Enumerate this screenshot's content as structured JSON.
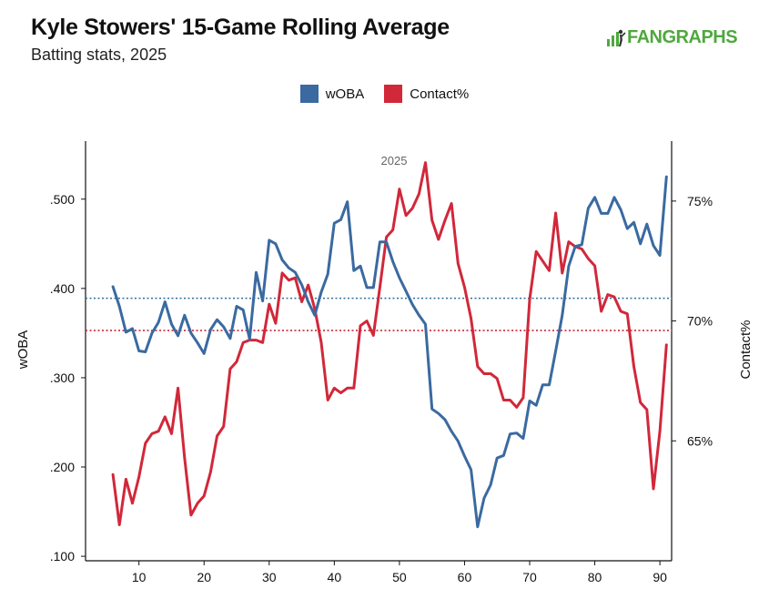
{
  "header": {
    "title": "Kyle Stowers' 15-Game Rolling Average",
    "subtitle": "Batting stats, 2025",
    "logo_text": "FANGRAPHS"
  },
  "colors": {
    "woba": "#3a6aa0",
    "contact": "#d1283a",
    "logo": "#4fa83d"
  },
  "chart_data": {
    "type": "line",
    "panel_label": "2025",
    "xlabel": "",
    "ylabel_left": "wOBA",
    "ylabel_right": "Contact%",
    "x_ticks": [
      10,
      20,
      30,
      40,
      50,
      60,
      70,
      80,
      90
    ],
    "left_ticks": [
      ".100",
      ".200",
      ".300",
      ".400",
      ".500"
    ],
    "left_tick_values": [
      0.1,
      0.2,
      0.3,
      0.4,
      0.5
    ],
    "right_ticks": [
      "65%",
      "70%",
      "75%"
    ],
    "right_tick_values": [
      65,
      70,
      75
    ],
    "xlim": [
      1.8,
      91.8
    ],
    "ylim_left": [
      0.095,
      0.565
    ],
    "ylim_right": [
      60.0,
      77.5
    ],
    "legend_position": "top-center",
    "series": [
      {
        "name": "wOBA",
        "axis": "left",
        "color": "#3a6aa0",
        "x": [
          6,
          7,
          8,
          9,
          10,
          11,
          12,
          13,
          14,
          15,
          16,
          17,
          18,
          19,
          20,
          21,
          22,
          23,
          24,
          25,
          26,
          27,
          28,
          29,
          30,
          31,
          32,
          33,
          34,
          35,
          36,
          37,
          38,
          39,
          40,
          41,
          42,
          43,
          44,
          45,
          46,
          47,
          48,
          49,
          50,
          51,
          52,
          53,
          54,
          55,
          56,
          57,
          58,
          59,
          60,
          61,
          62,
          63,
          64,
          65,
          66,
          67,
          68,
          69,
          70,
          71,
          72,
          73,
          74,
          75,
          76,
          77,
          78,
          79,
          80,
          81,
          82,
          83,
          84,
          85,
          86,
          87,
          88,
          89,
          90,
          91
        ],
        "values": [
          0.402,
          0.38,
          0.351,
          0.355,
          0.33,
          0.329,
          0.35,
          0.362,
          0.385,
          0.36,
          0.347,
          0.37,
          0.35,
          0.339,
          0.327,
          0.354,
          0.365,
          0.357,
          0.344,
          0.38,
          0.376,
          0.343,
          0.418,
          0.386,
          0.454,
          0.45,
          0.432,
          0.423,
          0.418,
          0.404,
          0.385,
          0.37,
          0.396,
          0.416,
          0.473,
          0.477,
          0.497,
          0.42,
          0.425,
          0.401,
          0.401,
          0.452,
          0.452,
          0.43,
          0.412,
          0.397,
          0.382,
          0.37,
          0.36,
          0.265,
          0.26,
          0.253,
          0.24,
          0.229,
          0.212,
          0.197,
          0.133,
          0.165,
          0.18,
          0.21,
          0.213,
          0.237,
          0.238,
          0.232,
          0.274,
          0.269,
          0.292,
          0.292,
          0.33,
          0.37,
          0.425,
          0.447,
          0.449,
          0.49,
          0.502,
          0.484,
          0.484,
          0.502,
          0.488,
          0.467,
          0.474,
          0.45,
          0.472,
          0.448,
          0.437,
          0.525
        ]
      },
      {
        "name": "Contact%",
        "axis": "right",
        "color": "#d1283a",
        "x": [
          6,
          7,
          8,
          9,
          10,
          11,
          12,
          13,
          14,
          15,
          16,
          17,
          18,
          19,
          20,
          21,
          22,
          23,
          24,
          25,
          26,
          27,
          28,
          29,
          30,
          31,
          32,
          33,
          34,
          35,
          36,
          37,
          38,
          39,
          40,
          41,
          42,
          43,
          44,
          45,
          46,
          47,
          48,
          49,
          50,
          51,
          52,
          53,
          54,
          55,
          56,
          57,
          58,
          59,
          60,
          61,
          62,
          63,
          64,
          65,
          66,
          67,
          68,
          69,
          70,
          71,
          72,
          73,
          74,
          75,
          76,
          77,
          78,
          79,
          80,
          81,
          82,
          83,
          84,
          85,
          86,
          87,
          88,
          89,
          90,
          91
        ],
        "values": [
          63.6,
          61.5,
          63.4,
          62.4,
          63.5,
          64.9,
          65.3,
          65.4,
          66.0,
          65.3,
          67.2,
          64.3,
          61.9,
          62.4,
          62.7,
          63.7,
          65.2,
          65.6,
          68.0,
          68.3,
          69.1,
          69.2,
          69.2,
          69.1,
          70.7,
          69.9,
          72.0,
          71.7,
          71.8,
          70.8,
          71.5,
          70.5,
          69.1,
          66.7,
          67.2,
          67.0,
          67.2,
          67.2,
          69.8,
          70.0,
          69.4,
          71.4,
          73.5,
          73.8,
          75.5,
          74.4,
          74.7,
          75.3,
          76.6,
          74.2,
          73.4,
          74.2,
          74.9,
          72.4,
          71.4,
          70.1,
          68.1,
          67.8,
          67.8,
          67.6,
          66.7,
          66.7,
          66.4,
          66.8,
          70.9,
          72.9,
          72.5,
          72.1,
          74.5,
          72.0,
          73.3,
          73.1,
          73.0,
          72.6,
          72.3,
          70.4,
          71.1,
          71.0,
          70.4,
          70.3,
          68.1,
          66.6,
          66.3,
          63.0,
          65.4,
          69.0
        ]
      }
    ],
    "reference_lines": [
      {
        "axis": "left",
        "value": 0.389,
        "color": "#2f6f98"
      },
      {
        "axis": "right",
        "value": 69.6,
        "color": "#c8283a"
      }
    ]
  }
}
